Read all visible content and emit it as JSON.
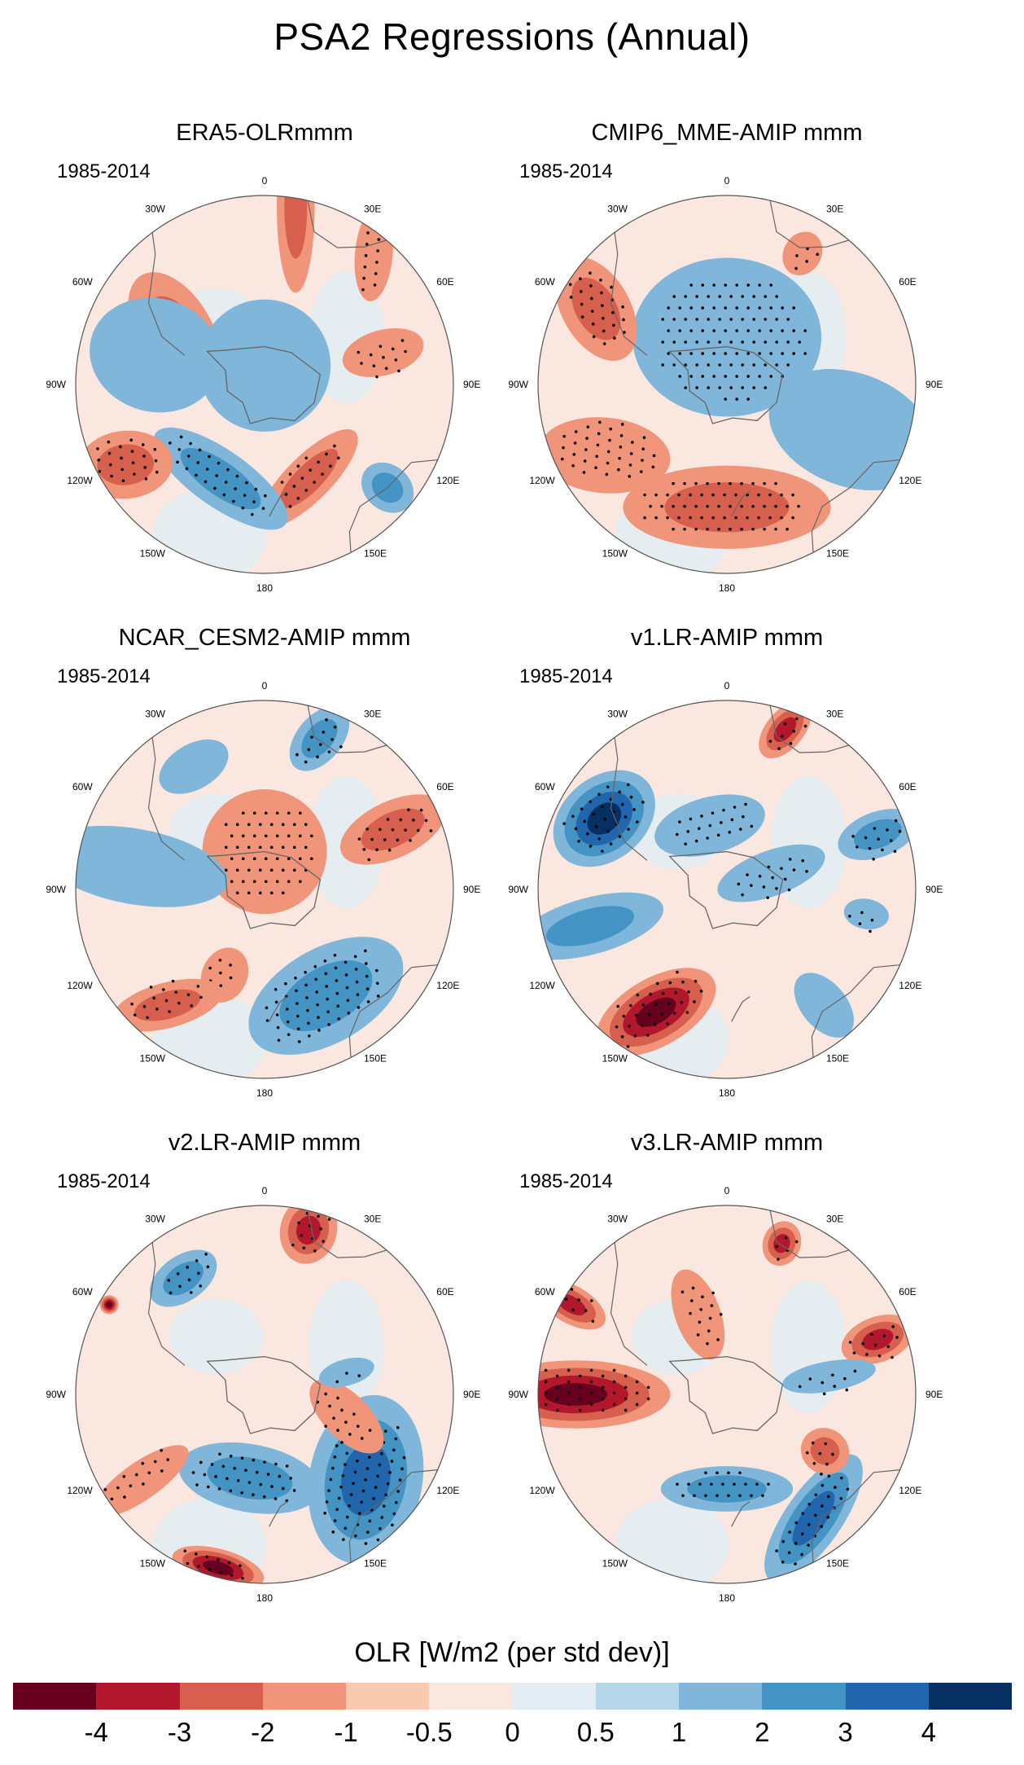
{
  "figure": {
    "title": "PSA2 Regressions (Annual)",
    "period": "1985-2014"
  },
  "panels": [
    {
      "title": "ERA5-OLRmmm",
      "period": "1985-2014"
    },
    {
      "title": "CMIP6_MME-AMIP  mmm",
      "period": "1985-2014"
    },
    {
      "title": "NCAR_CESM2-AMIP  mmm",
      "period": "1985-2014"
    },
    {
      "title": "v1.LR-AMIP  mmm",
      "period": "1985-2014"
    },
    {
      "title": "v2.LR-AMIP  mmm",
      "period": "1985-2014"
    },
    {
      "title": "v3.LR-AMIP  mmm",
      "period": "1985-2014"
    }
  ],
  "lon_labels": [
    "0",
    "30E",
    "60E",
    "90E",
    "120E",
    "150E",
    "180",
    "150W",
    "120W",
    "90W",
    "60W",
    "30W"
  ],
  "colorbar": {
    "title": "OLR [W/m2 (per std dev)]",
    "tick_labels": [
      "-4",
      "-3",
      "-2",
      "-1",
      "-0.5",
      "0",
      "0.5",
      "1",
      "2",
      "3",
      "4"
    ],
    "colors": [
      "#67001f",
      "#b2182b",
      "#d6604d",
      "#f0947a",
      "#f9c9b0",
      "#fae7df",
      "#e3edf3",
      "#b5d6e8",
      "#7fb6d9",
      "#4393c3",
      "#2166ac",
      "#053061"
    ]
  },
  "map_colors": {
    "background": "#fae7df",
    "neutral_pos": "#fae7df",
    "neutral_neg": "#e3edf3",
    "coast": "#666666",
    "stipple": "#000000"
  },
  "anomalies": [
    [
      {
        "lon": 300,
        "r": 0.55,
        "ry": 0.35,
        "rx": 0.2,
        "rot": 30,
        "lvl": 2,
        "dots": 0
      },
      {
        "lon": 10,
        "r": 0.95,
        "ry": 0.1,
        "rx": 0.45,
        "rot": 80,
        "lvl": 2,
        "dots": 0
      },
      {
        "lon": 40,
        "r": 0.9,
        "ry": 0.1,
        "rx": 0.25,
        "rot": 55,
        "lvl": 1,
        "dots": 1
      },
      {
        "lon": 75,
        "r": 0.65,
        "ry": 0.22,
        "rx": 0.12,
        "rot": 0,
        "lvl": 1,
        "dots": 1
      },
      {
        "lon": 155,
        "r": 0.55,
        "ry": 0.12,
        "rx": 0.35,
        "rot": -20,
        "lvl": 2,
        "dots": 1
      },
      {
        "lon": 205,
        "r": 0.55,
        "ry": 0.15,
        "rx": 0.42,
        "rot": 10,
        "lvl": -2,
        "dots": 1
      },
      {
        "lon": 240,
        "r": 0.85,
        "ry": 0.25,
        "rx": 0.18,
        "rot": 25,
        "lvl": 2,
        "dots": 1
      },
      {
        "lon": 285,
        "r": 0.6,
        "ry": 0.35,
        "rx": 0.3,
        "rot": 0,
        "lvl": -1,
        "dots": 0
      },
      {
        "lon": 130,
        "r": 0.85,
        "ry": 0.15,
        "rx": 0.12,
        "rot": 0,
        "lvl": -2,
        "dots": 0
      },
      {
        "lon": 0,
        "r": 0.1,
        "ry": 0.35,
        "rx": 0.35,
        "rot": 0,
        "lvl": -1,
        "dots": 0
      }
    ],
    [
      {
        "lon": 0,
        "r": 0.25,
        "ry": 0.42,
        "rx": 0.5,
        "rot": 0,
        "lvl": -1,
        "dots": 1
      },
      {
        "lon": 180,
        "r": 0.65,
        "ry": 0.22,
        "rx": 0.55,
        "rot": 0,
        "lvl": 2,
        "dots": 1
      },
      {
        "lon": 300,
        "r": 0.8,
        "ry": 0.3,
        "rx": 0.18,
        "rot": 30,
        "lvl": 2,
        "dots": 1
      },
      {
        "lon": 30,
        "r": 0.8,
        "ry": 0.12,
        "rx": 0.1,
        "rot": 0,
        "lvl": 1,
        "dots": 1
      },
      {
        "lon": 110,
        "r": 0.7,
        "ry": 0.45,
        "rx": 0.3,
        "rot": 0,
        "lvl": -1,
        "dots": 0
      },
      {
        "lon": 240,
        "r": 0.75,
        "ry": 0.35,
        "rx": 0.2,
        "rot": 35,
        "lvl": 1,
        "dots": 1
      }
    ],
    [
      {
        "lon": 0,
        "r": 0.2,
        "ry": 0.33,
        "rx": 0.33,
        "rot": 0,
        "lvl": 1,
        "dots": 1
      },
      {
        "lon": 20,
        "r": 0.85,
        "ry": 0.2,
        "rx": 0.12,
        "rot": 20,
        "lvl": -2,
        "dots": 1
      },
      {
        "lon": 65,
        "r": 0.75,
        "ry": 0.3,
        "rx": 0.15,
        "rot": 0,
        "lvl": 2,
        "dots": 1
      },
      {
        "lon": 150,
        "r": 0.65,
        "ry": 0.25,
        "rx": 0.45,
        "rot": 0,
        "lvl": -2,
        "dots": 1
      },
      {
        "lon": 205,
        "r": 0.5,
        "ry": 0.15,
        "rx": 0.12,
        "rot": 0,
        "lvl": 1,
        "dots": 1
      },
      {
        "lon": 220,
        "r": 0.8,
        "ry": 0.3,
        "rx": 0.12,
        "rot": 35,
        "lvl": 2,
        "dots": 1
      },
      {
        "lon": 330,
        "r": 0.75,
        "ry": 0.12,
        "rx": 0.2,
        "rot": 0,
        "lvl": -1,
        "dots": 0
      },
      {
        "lon": 280,
        "r": 0.7,
        "ry": 0.5,
        "rx": 0.2,
        "rot": 0,
        "lvl": -1,
        "dots": 0
      }
    ],
    [
      {
        "lon": 300,
        "r": 0.75,
        "ry": 0.22,
        "rx": 0.3,
        "rot": 20,
        "lvl": -4,
        "dots": 1
      },
      {
        "lon": 20,
        "r": 0.9,
        "ry": 0.18,
        "rx": 0.1,
        "rot": 20,
        "lvl": 3,
        "dots": 1
      },
      {
        "lon": 210,
        "r": 0.75,
        "ry": 0.35,
        "rx": 0.18,
        "rot": 30,
        "lvl": 4,
        "dots": 1
      },
      {
        "lon": 255,
        "r": 0.75,
        "ry": 0.4,
        "rx": 0.15,
        "rot": 0,
        "lvl": -2,
        "dots": 0
      },
      {
        "lon": 70,
        "r": 0.85,
        "ry": 0.22,
        "rx": 0.12,
        "rot": 0,
        "lvl": -2,
        "dots": 1
      },
      {
        "lon": 100,
        "r": 0.75,
        "ry": 0.12,
        "rx": 0.08,
        "rot": 0,
        "lvl": -1,
        "dots": 1
      },
      {
        "lon": 140,
        "r": 0.8,
        "ry": 0.2,
        "rx": 0.12,
        "rot": 0,
        "lvl": -1,
        "dots": 0
      },
      {
        "lon": 70,
        "r": 0.25,
        "ry": 0.3,
        "rx": 0.12,
        "rot": 0,
        "lvl": -1,
        "dots": 1
      },
      {
        "lon": 345,
        "r": 0.35,
        "ry": 0.15,
        "rx": 0.3,
        "rot": 0,
        "lvl": -1,
        "dots": 1
      }
    ],
    [
      {
        "lon": 130,
        "r": 0.7,
        "ry": 0.3,
        "rx": 0.45,
        "rot": -30,
        "lvl": -3,
        "dots": 1
      },
      {
        "lon": 105,
        "r": 0.45,
        "ry": 0.25,
        "rx": 0.12,
        "rot": 30,
        "lvl": 1,
        "dots": 1
      },
      {
        "lon": 190,
        "r": 0.45,
        "ry": 0.18,
        "rx": 0.38,
        "rot": 0,
        "lvl": -2,
        "dots": 1
      },
      {
        "lon": 235,
        "r": 0.8,
        "ry": 0.3,
        "rx": 0.1,
        "rot": 0,
        "lvl": 1,
        "dots": 1
      },
      {
        "lon": 195,
        "r": 0.95,
        "ry": 0.1,
        "rx": 0.25,
        "rot": 0,
        "lvl": 4,
        "dots": 1
      },
      {
        "lon": 15,
        "r": 0.9,
        "ry": 0.18,
        "rx": 0.15,
        "rot": 0,
        "lvl": 3,
        "dots": 1
      },
      {
        "lon": 325,
        "r": 0.75,
        "ry": 0.12,
        "rx": 0.2,
        "rot": 0,
        "lvl": -2,
        "dots": 1
      },
      {
        "lon": 300,
        "r": 0.95,
        "ry": 0.05,
        "rx": 0.05,
        "rot": 0,
        "lvl": 4,
        "dots": 0
      },
      {
        "lon": 75,
        "r": 0.45,
        "ry": 0.15,
        "rx": 0.07,
        "rot": 0,
        "lvl": -1,
        "dots": 1
      }
    ],
    [
      {
        "lon": 270,
        "r": 0.8,
        "ry": 0.5,
        "rx": 0.18,
        "rot": 0,
        "lvl": 4,
        "dots": 1
      },
      {
        "lon": 180,
        "r": 0.5,
        "ry": 0.12,
        "rx": 0.35,
        "rot": 0,
        "lvl": -2,
        "dots": 1
      },
      {
        "lon": 145,
        "r": 0.8,
        "ry": 0.15,
        "rx": 0.4,
        "rot": -20,
        "lvl": -3,
        "dots": 1
      },
      {
        "lon": 120,
        "r": 0.6,
        "ry": 0.13,
        "rx": 0.12,
        "rot": 0,
        "lvl": 2,
        "dots": 1
      },
      {
        "lon": 70,
        "r": 0.85,
        "ry": 0.2,
        "rx": 0.12,
        "rot": 0,
        "lvl": 3,
        "dots": 1
      },
      {
        "lon": 20,
        "r": 0.85,
        "ry": 0.12,
        "rx": 0.1,
        "rot": 0,
        "lvl": 3,
        "dots": 1
      },
      {
        "lon": 340,
        "r": 0.45,
        "ry": 0.25,
        "rx": 0.12,
        "rot": 0,
        "lvl": 1,
        "dots": 1
      },
      {
        "lon": 80,
        "r": 0.55,
        "ry": 0.25,
        "rx": 0.08,
        "rot": 0,
        "lvl": -1,
        "dots": 1
      },
      {
        "lon": 300,
        "r": 0.95,
        "ry": 0.2,
        "rx": 0.1,
        "rot": 0,
        "lvl": 3,
        "dots": 1
      }
    ]
  ]
}
